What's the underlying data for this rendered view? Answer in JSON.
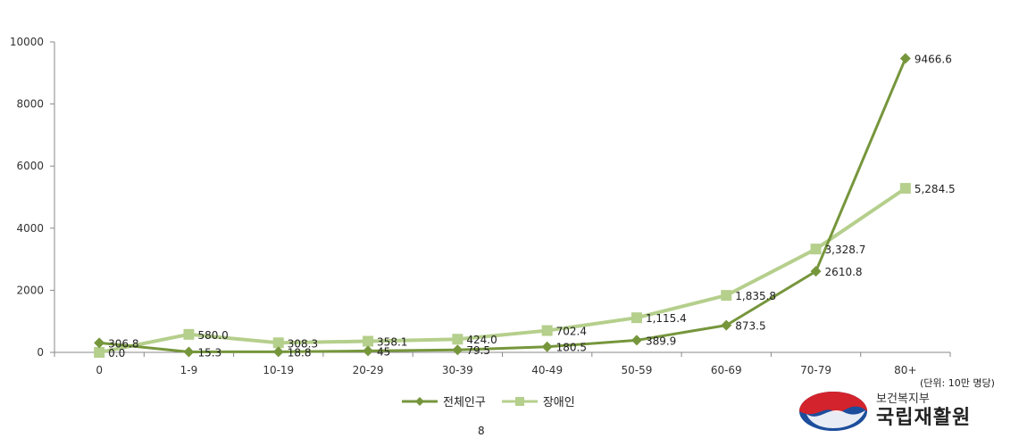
{
  "chart_data": {
    "type": "line",
    "categories": [
      "0",
      "1-9",
      "10-19",
      "20-29",
      "30-39",
      "40-49",
      "50-59",
      "60-69",
      "70-79",
      "80+"
    ],
    "ylim": [
      0,
      10000
    ],
    "yticks": [
      "0",
      "2000",
      "4000",
      "6000",
      "8000",
      "10000"
    ],
    "grid": false,
    "legend_position": "bottom",
    "series": [
      {
        "name": "전체인구",
        "color": "#76963c",
        "marker": "diamond",
        "values": [
          306.8,
          15.3,
          18.8,
          45,
          79.5,
          180.5,
          389.9,
          873.5,
          2610.8,
          9466.6
        ],
        "labels": [
          "306.8",
          "15.3",
          "18.8",
          "45",
          "79.5",
          "180.5",
          "389.9",
          "873.5",
          "2610.8",
          "9466.6"
        ]
      },
      {
        "name": "장애인",
        "color": "#b5cf8c",
        "marker": "square",
        "values": [
          0.0,
          580.0,
          308.3,
          358.1,
          424.0,
          702.4,
          1115.4,
          1835.8,
          3328.7,
          5284.5
        ],
        "labels": [
          "0.0",
          "580.0",
          "308.3",
          "358.1",
          "424.0",
          "702.4",
          "1,115.4",
          "1,835.8",
          "3,328.7",
          "5,284.5"
        ]
      }
    ]
  },
  "unit_note": "(단위: 10만 명당)",
  "page_number": "8",
  "logo": {
    "sub": "보건복지부",
    "main": "국립재활원"
  }
}
